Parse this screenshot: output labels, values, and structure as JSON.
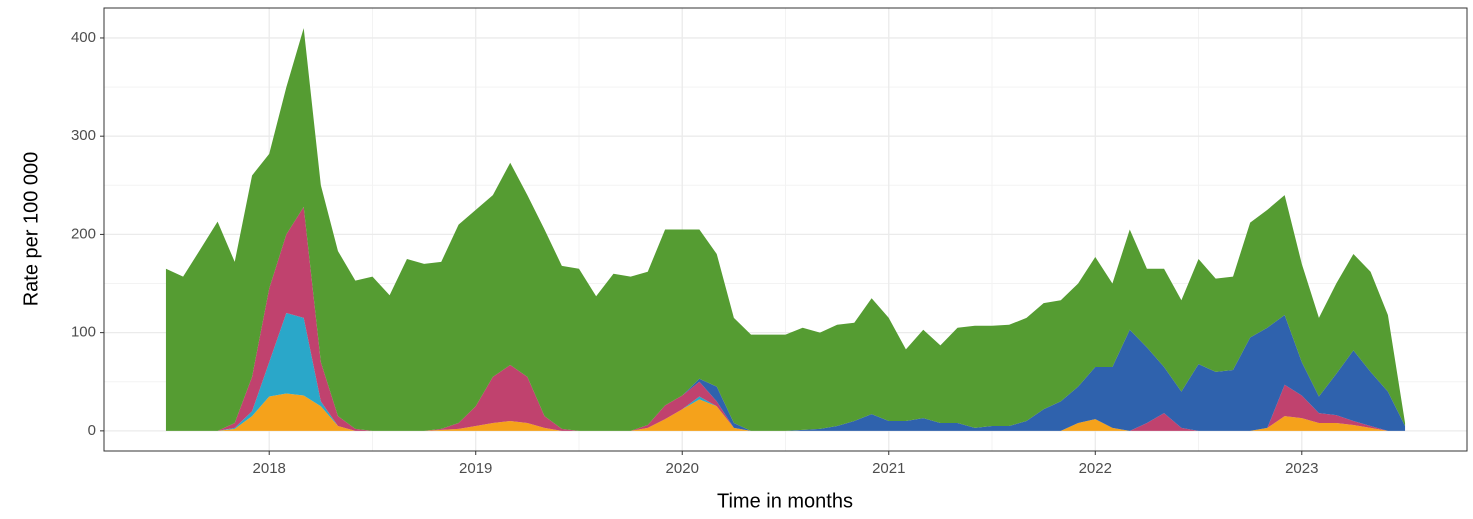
{
  "chart_data": {
    "type": "stacked_area",
    "x_label": "Time in months",
    "y_label": "Rate per 100 000",
    "x": [
      2017.5,
      2017.583,
      2017.667,
      2017.75,
      2017.833,
      2017.917,
      2018,
      2018.083,
      2018.167,
      2018.25,
      2018.333,
      2018.417,
      2018.5,
      2018.583,
      2018.667,
      2018.75,
      2018.833,
      2018.917,
      2019,
      2019.083,
      2019.167,
      2019.25,
      2019.333,
      2019.417,
      2019.5,
      2019.583,
      2019.667,
      2019.75,
      2019.833,
      2019.917,
      2020,
      2020.083,
      2020.167,
      2020.25,
      2020.333,
      2020.417,
      2020.5,
      2020.583,
      2020.667,
      2020.75,
      2020.833,
      2020.917,
      2021,
      2021.083,
      2021.167,
      2021.25,
      2021.333,
      2021.417,
      2021.5,
      2021.583,
      2021.667,
      2021.75,
      2021.833,
      2021.917,
      2022,
      2022.083,
      2022.167,
      2022.25,
      2022.333,
      2022.417,
      2022.5,
      2022.583,
      2022.667,
      2022.75,
      2022.833,
      2022.917,
      2023,
      2023.083,
      2023.167,
      2023.25,
      2023.333,
      2023.417,
      2023.5
    ],
    "series": [
      {
        "color": "#f5a21b",
        "values": [
          0,
          0,
          0,
          0,
          2,
          15,
          35,
          38,
          36,
          25,
          5,
          0,
          0,
          0,
          0,
          0,
          1,
          2,
          5,
          8,
          10,
          8,
          3,
          0,
          0,
          0,
          0,
          0,
          3,
          12,
          22,
          32,
          25,
          3,
          0,
          0,
          0,
          0,
          0,
          0,
          0,
          0,
          0,
          0,
          0,
          0,
          0,
          0,
          0,
          0,
          0,
          0,
          0,
          8,
          12,
          3,
          0,
          0,
          0,
          0,
          0,
          0,
          0,
          0,
          3,
          15,
          13,
          8,
          8,
          6,
          3,
          0,
          0
        ]
      },
      {
        "color": "#2aa7c9",
        "values": [
          0,
          0,
          0,
          0,
          1,
          5,
          35,
          82,
          79,
          5,
          0,
          0,
          0,
          0,
          0,
          0,
          0,
          0,
          0,
          0,
          0,
          0,
          0,
          0,
          0,
          0,
          0,
          0,
          0,
          0,
          0,
          3,
          0,
          0,
          0,
          0,
          0,
          0,
          0,
          0,
          0,
          0,
          0,
          0,
          0,
          0,
          0,
          0,
          0,
          0,
          0,
          0,
          0,
          0,
          0,
          0,
          0,
          0,
          0,
          0,
          0,
          0,
          0,
          0,
          0,
          0,
          0,
          0,
          0,
          0,
          0,
          0,
          0
        ]
      },
      {
        "color": "#c0426e",
        "values": [
          0,
          0,
          0,
          0,
          5,
          35,
          75,
          80,
          113,
          40,
          10,
          2,
          0,
          0,
          0,
          0,
          1,
          6,
          20,
          47,
          57,
          47,
          12,
          2,
          0,
          0,
          0,
          0,
          3,
          14,
          14,
          15,
          5,
          0,
          0,
          0,
          0,
          0,
          0,
          0,
          0,
          0,
          0,
          0,
          0,
          0,
          0,
          0,
          0,
          0,
          0,
          0,
          0,
          0,
          0,
          0,
          0,
          8,
          18,
          3,
          0,
          0,
          0,
          0,
          0,
          32,
          23,
          10,
          8,
          4,
          2,
          0,
          0
        ]
      },
      {
        "color": "#2f62ad",
        "values": [
          0,
          0,
          0,
          0,
          0,
          0,
          0,
          0,
          0,
          0,
          0,
          0,
          0,
          0,
          0,
          0,
          0,
          0,
          0,
          0,
          0,
          0,
          0,
          0,
          0,
          0,
          0,
          0,
          0,
          0,
          0,
          3,
          15,
          5,
          0,
          0,
          0,
          1,
          2,
          5,
          10,
          17,
          10,
          10,
          13,
          8,
          8,
          3,
          5,
          5,
          10,
          22,
          30,
          37,
          53,
          62,
          103,
          77,
          47,
          37,
          68,
          60,
          62,
          95,
          102,
          71,
          34,
          17,
          42,
          72,
          55,
          40,
          5
        ]
      },
      {
        "color": "#559c32",
        "values": [
          165,
          157,
          185,
          213,
          164,
          205,
          137,
          150,
          182,
          180,
          168,
          151,
          157,
          138,
          175,
          170,
          170,
          202,
          200,
          185,
          206,
          185,
          190,
          166,
          165,
          137,
          160,
          157,
          156,
          179,
          169,
          152,
          135,
          107,
          98,
          98,
          98,
          104,
          98,
          103,
          100,
          118,
          105,
          73,
          90,
          79,
          97,
          104,
          102,
          103,
          105,
          108,
          103,
          105,
          112,
          85,
          102,
          80,
          100,
          93,
          107,
          95,
          95,
          117,
          120,
          122,
          100,
          80,
          92,
          98,
          102,
          78,
          3
        ]
      }
    ],
    "xlim": [
      2017.2,
      2023.8
    ],
    "xticks": [
      2018,
      2019,
      2020,
      2021,
      2022,
      2023
    ],
    "ylim": [
      -20.5,
      430.5
    ],
    "yticks": [
      0,
      100,
      200,
      300,
      400
    ],
    "grid": true
  }
}
